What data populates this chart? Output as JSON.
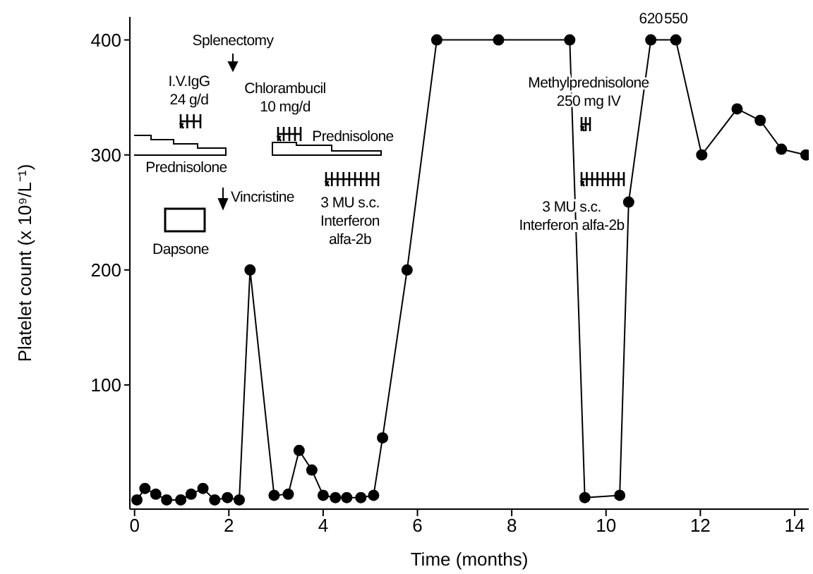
{
  "chart_data": {
    "type": "line",
    "xlabel": "Time (months)",
    "ylabel": "Platelet count (x 10⁹/L⁻¹)",
    "xlim": [
      -0.1,
      14.3
    ],
    "ylim": [
      -8,
      420
    ],
    "xticks": [
      0,
      2,
      4,
      6,
      8,
      10,
      12,
      14
    ],
    "yticks": [
      100,
      200,
      300,
      400
    ],
    "marker": "circle",
    "line_style": "solid",
    "grid": false,
    "series": [
      {
        "color": "#000000",
        "x": [
          0.05,
          0.22,
          0.45,
          0.68,
          0.98,
          1.2,
          1.45,
          1.7,
          1.97,
          2.22,
          2.45,
          2.96,
          3.26,
          3.49,
          3.76,
          4.0,
          4.26,
          4.5,
          4.8,
          5.07,
          5.26,
          5.78,
          6.41,
          7.72,
          9.23,
          9.55,
          10.29,
          10.48,
          10.95,
          11.48,
          12.03,
          12.78,
          13.27,
          13.72,
          14.24
        ],
        "values": [
          0,
          10,
          5,
          0,
          0,
          5,
          10,
          0,
          2,
          0,
          200,
          4,
          5,
          43,
          26,
          4,
          2,
          2,
          2,
          4,
          54,
          200,
          400,
          400,
          400,
          2,
          4,
          259,
          400,
          400,
          300,
          340,
          330,
          305,
          300
        ]
      }
    ],
    "annotations": [
      "Splenectomy",
      "I.V.IgG\n24 g/d",
      "Prednisolone",
      "Vincristine",
      "Dapsone",
      "Chlorambucil\n10 mg/d",
      "Prednisolone",
      "3 MU s.c.\nInterferon\nalfa-2b",
      "Methylprednisolone\n250 mg IV",
      "3 MU s.c.\nInterferon alfa-2b",
      {
        "text": "620",
        "x": 10.95,
        "y": 400
      },
      {
        "text": "550",
        "x": 11.48,
        "y": 400
      }
    ]
  }
}
